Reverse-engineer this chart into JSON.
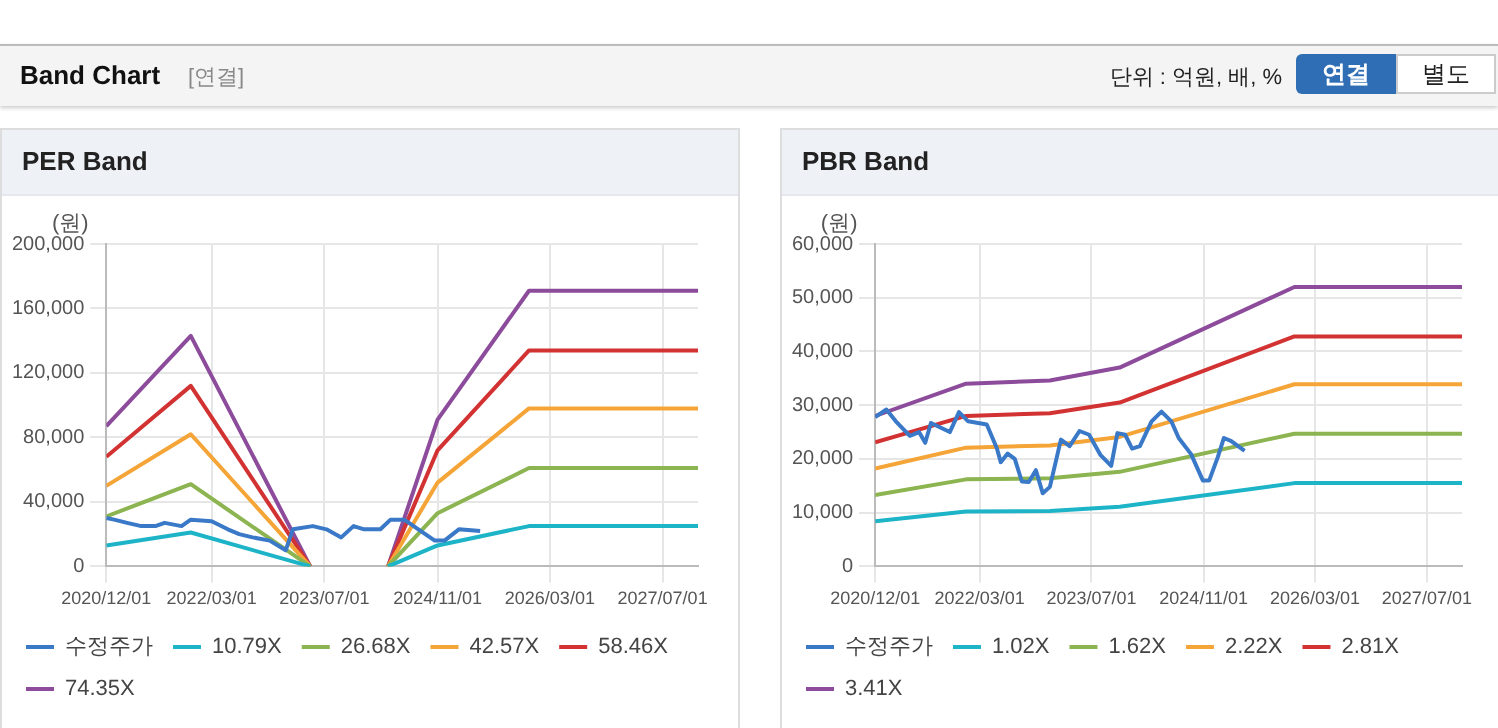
{
  "chart_data": [
    {
      "type": "line",
      "title": "PER Band",
      "ylabel": "(원)",
      "annotations": [
        "Band Chart",
        "[연결]",
        "단위 : 억원, 배, %",
        "연결",
        "별도"
      ],
      "legend": "bottom",
      "grid": true,
      "marker": "none",
      "line_style": "solid",
      "xlim": [
        "2020-12-01",
        "2027-12-01"
      ],
      "xticks": [
        {
          "value": "2020-12-01",
          "label": "2020/12/01"
        },
        {
          "value": "2022-03-01",
          "label": "2022/03/01"
        },
        {
          "value": "2023-07-01",
          "label": "2023/07/01"
        },
        {
          "value": "2024-11-01",
          "label": "2024/11/01"
        },
        {
          "value": "2026-03-01",
          "label": "2026/03/01"
        },
        {
          "value": "2027-07-01",
          "label": "2027/07/01"
        }
      ],
      "ylim": [
        0,
        200000
      ],
      "yticks": [
        0,
        {
          "value": 40000,
          "label": "40,000"
        },
        {
          "value": 80000,
          "label": "80,000"
        },
        {
          "value": 120000,
          "label": "120,000"
        },
        {
          "value": 160000,
          "label": "160,000"
        },
        {
          "value": 200000,
          "label": "200,000"
        }
      ],
      "x": [
        "2020-12-01",
        "2021-12-01",
        "2023-05-01",
        "2023-11-01",
        "2024-04-01",
        "2024-11-01",
        "2025-12-01",
        "2027-12-01"
      ],
      "series": [
        {
          "name": "수정주가",
          "color": "#3a78c8",
          "x": [
            "2020-12-01",
            "2021-01-04",
            "2021-03-01",
            "2021-05-01",
            "2021-07-01",
            "2021-08-10",
            "2021-10-22",
            "2021-12-01",
            "2022-03-01",
            "2022-05-10",
            "2022-06-28",
            "2022-08-25",
            "2022-11-07",
            "2023-01-15",
            "2023-02-15",
            "2023-05-12",
            "2023-07-10",
            "2023-09-12",
            "2023-11-04",
            "2023-12-20",
            "2024-02-28",
            "2024-04-12",
            "2024-06-10",
            "2024-08-10",
            "2024-10-20",
            "2024-12-01",
            "2025-02-01",
            "2025-05-04"
          ],
          "values": [
            30000,
            29000,
            27000,
            25000,
            25000,
            27000,
            25000,
            29000,
            28000,
            23000,
            20000,
            18000,
            16000,
            10000,
            23000,
            25000,
            23000,
            18000,
            25000,
            23000,
            23000,
            29000,
            29000,
            23000,
            16000,
            16000,
            23000,
            22000
          ]
        },
        {
          "name": "10.79X",
          "color": "#1eb4c8",
          "values": [
            13000,
            21000,
            0,
            null,
            0,
            13000,
            25000,
            25000
          ]
        },
        {
          "name": "26.68X",
          "color": "#8cb450",
          "values": [
            31000,
            51000,
            0,
            null,
            0,
            33000,
            61000,
            61000
          ]
        },
        {
          "name": "42.57X",
          "color": "#f5a537",
          "values": [
            50000,
            82000,
            0,
            null,
            0,
            52000,
            98000,
            98000
          ]
        },
        {
          "name": "58.46X",
          "color": "#d23232",
          "values": [
            68000,
            112000,
            0,
            null,
            0,
            72000,
            134000,
            134000
          ]
        },
        {
          "name": "74.35X",
          "color": "#8c4b9b",
          "values": [
            87000,
            143000,
            0,
            null,
            0,
            91000,
            171000,
            171000
          ]
        }
      ]
    },
    {
      "type": "line",
      "title": "PBR Band",
      "ylabel": "(원)",
      "legend": "bottom",
      "grid": true,
      "marker": "none",
      "line_style": "solid",
      "xlim": [
        "2020-12-01",
        "2027-12-01"
      ],
      "xticks": [
        {
          "value": "2020-12-01",
          "label": "2020/12/01"
        },
        {
          "value": "2022-03-01",
          "label": "2022/03/01"
        },
        {
          "value": "2023-07-01",
          "label": "2023/07/01"
        },
        {
          "value": "2024-11-01",
          "label": "2024/11/01"
        },
        {
          "value": "2026-03-01",
          "label": "2026/03/01"
        },
        {
          "value": "2027-07-01",
          "label": "2027/07/01"
        }
      ],
      "ylim": [
        0,
        60000
      ],
      "yticks": [
        0,
        {
          "value": 10000,
          "label": "10,000"
        },
        {
          "value": 20000,
          "label": "20,000"
        },
        {
          "value": 30000,
          "label": "30,000"
        },
        {
          "value": 40000,
          "label": "40,000"
        },
        {
          "value": 50000,
          "label": "50,000"
        },
        {
          "value": 60000,
          "label": "60,000"
        }
      ],
      "x": [
        "2020-12-01",
        "2022-01-01",
        "2023-01-01",
        "2023-11-01",
        "2025-12-01",
        "2027-12-01"
      ],
      "series": [
        {
          "name": "수정주가",
          "color": "#3a78c8",
          "x": [
            "2020-12-01",
            "2021-01-19",
            "2021-03-01",
            "2021-05-01",
            "2021-06-10",
            "2021-07-07",
            "2021-08-01",
            "2021-10-22",
            "2021-12-01",
            "2022-01-10",
            "2022-04-01",
            "2022-05-15",
            "2022-06-01",
            "2022-07-01",
            "2022-08-01",
            "2022-09-01",
            "2022-10-01",
            "2022-11-01",
            "2022-12-01",
            "2023-01-01",
            "2023-02-18",
            "2023-03-28",
            "2023-05-10",
            "2023-06-21",
            "2023-08-10",
            "2023-09-25",
            "2023-10-22",
            "2023-11-25",
            "2023-12-25",
            "2024-01-28",
            "2024-03-19",
            "2024-05-01",
            "2024-06-13",
            "2024-07-15",
            "2024-09-07",
            "2024-10-28",
            "2024-11-25",
            "2025-01-01",
            "2025-01-28",
            "2025-03-01",
            "2025-04-28"
          ],
          "values": [
            27800,
            29200,
            27000,
            24300,
            25000,
            23000,
            26700,
            25000,
            28700,
            27000,
            26400,
            22000,
            19400,
            21000,
            20000,
            15800,
            15700,
            17900,
            13600,
            14800,
            23600,
            22400,
            25200,
            24500,
            20700,
            18700,
            24800,
            24500,
            21900,
            22400,
            27000,
            28800,
            27000,
            23900,
            20900,
            16000,
            16000,
            20300,
            23900,
            23300,
            21500
          ]
        },
        {
          "name": "1.02X",
          "color": "#1eb4c8",
          "values": [
            8400,
            10200,
            10300,
            11100,
            15500,
            15500
          ]
        },
        {
          "name": "1.62X",
          "color": "#8cb450",
          "values": [
            13300,
            16200,
            16400,
            17600,
            24700,
            24700
          ]
        },
        {
          "name": "2.22X",
          "color": "#f5a537",
          "values": [
            18200,
            22100,
            22500,
            24100,
            33900,
            33900
          ]
        },
        {
          "name": "2.81X",
          "color": "#d23232",
          "values": [
            23100,
            28000,
            28500,
            30500,
            42800,
            42800
          ]
        },
        {
          "name": "3.41X",
          "color": "#8c4b9b",
          "values": [
            28000,
            34000,
            34600,
            37000,
            52000,
            52000
          ]
        }
      ]
    }
  ]
}
